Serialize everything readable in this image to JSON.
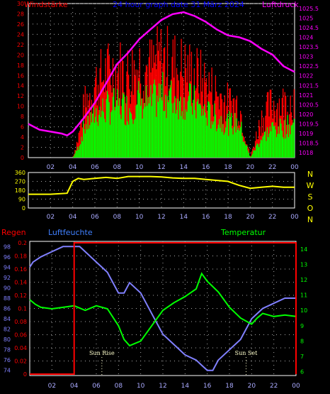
{
  "chart_data": [
    {
      "type": "bar+line",
      "title": "24 hour graph date  31 März 2024",
      "left_label": "Windstärke",
      "right_label": "Luftdruck",
      "y_left_ticks": [
        "0",
        "2",
        "4",
        "6",
        "8",
        "10",
        "12",
        "14",
        "16",
        "18",
        "20",
        "22",
        "24",
        "26",
        "28",
        "30"
      ],
      "y_right_ticks": [
        "1018",
        "1018.5",
        "1019",
        "1019.5",
        "1020",
        "1020.5",
        "1021",
        "1021.5",
        "1022",
        "1022.5",
        "1023",
        "1023.5",
        "1024",
        "1024.5",
        "1025",
        "1025.5"
      ],
      "x_ticks": [
        "02",
        "04",
        "06",
        "08",
        "10",
        "12",
        "14",
        "16",
        "18",
        "20",
        "22",
        "00"
      ],
      "ylim_left": [
        0,
        30
      ],
      "ylim_right": [
        1017.75,
        1025.75
      ],
      "colors": {
        "gust": "#ff0000",
        "speed": "#00ff00",
        "pressure": "#ff00ff",
        "title": "#0000ff"
      },
      "pressure": {
        "x": [
          0,
          1,
          2,
          3,
          3.5,
          4,
          5,
          6,
          7,
          8,
          9,
          10,
          11,
          12,
          13,
          14,
          15,
          16,
          17,
          18,
          19,
          20,
          21,
          22,
          23,
          24
        ],
        "values": [
          1019.5,
          1019.2,
          1019.1,
          1019.0,
          1018.9,
          1019.1,
          1019.8,
          1020.6,
          1021.6,
          1022.6,
          1023.2,
          1023.9,
          1024.4,
          1024.9,
          1025.2,
          1025.3,
          1025.1,
          1024.8,
          1024.4,
          1024.1,
          1024.0,
          1023.8,
          1023.4,
          1023.1,
          1022.5,
          1022.2
        ]
      },
      "wind_speed_profile": {
        "x": [
          0,
          4,
          4.5,
          5,
          6,
          7,
          8,
          9,
          10,
          11,
          12,
          13,
          14,
          15,
          16,
          17,
          18,
          19,
          20,
          21,
          22,
          23,
          24
        ],
        "values": [
          0,
          0,
          2,
          6,
          9,
          10,
          11,
          10,
          12,
          11,
          13,
          12,
          12,
          11,
          9,
          8,
          7,
          7,
          0,
          4,
          6,
          6,
          7
        ]
      },
      "wind_gust_profile": {
        "x": [
          0,
          4,
          4.5,
          5,
          6,
          7,
          8,
          9,
          10,
          11,
          12,
          13,
          14,
          15,
          16,
          17,
          18,
          19,
          20,
          21,
          22,
          23,
          24
        ],
        "values": [
          0,
          0,
          4,
          10,
          15,
          17,
          18,
          17,
          19,
          18,
          20,
          19,
          18,
          17,
          15,
          13,
          11,
          11,
          0,
          8,
          11,
          11,
          12
        ]
      }
    },
    {
      "type": "line",
      "y_ticks": [
        "0",
        "90",
        "180",
        "270",
        "360"
      ],
      "right_labels": [
        "N",
        "W",
        "S",
        "O",
        "N"
      ],
      "x_ticks": [
        "02",
        "04",
        "06",
        "08",
        "10",
        "12",
        "14",
        "16",
        "18",
        "20",
        "22",
        "00"
      ],
      "ylim": [
        0,
        360
      ],
      "color": "#ffff00",
      "wind_direction": {
        "x": [
          0,
          2,
          3.5,
          4,
          4.5,
          5,
          6,
          7,
          8,
          9,
          10,
          11,
          12,
          13,
          14,
          15,
          16,
          17,
          18,
          18.5,
          19,
          20,
          21,
          22,
          23,
          24
        ],
        "values": [
          140,
          140,
          150,
          270,
          300,
          290,
          300,
          310,
          300,
          320,
          320,
          320,
          315,
          305,
          300,
          300,
          290,
          280,
          270,
          250,
          230,
          200,
          210,
          220,
          210,
          210
        ]
      }
    },
    {
      "type": "line",
      "labels": {
        "rain": "Regen",
        "humidity": "Luftfeuchte",
        "temperature": "Temperatur"
      },
      "y_humidity_ticks": [
        "74",
        "76",
        "78",
        "80",
        "82",
        "84",
        "86",
        "88",
        "90",
        "92",
        "94",
        "96",
        "98"
      ],
      "y_rain_ticks": [
        "0",
        "0.02",
        "0.04",
        "0.06",
        "0.08",
        "0.1",
        "0.12",
        "0.14",
        "0.16",
        "0.18",
        "0.2"
      ],
      "y_temp_ticks": [
        "6",
        "7",
        "8",
        "9",
        "10",
        "11",
        "12",
        "13",
        "14"
      ],
      "x_ticks": [
        "02",
        "04",
        "06",
        "08",
        "10",
        "12",
        "14",
        "16",
        "18",
        "20",
        "22",
        "00"
      ],
      "annotations": [
        "Sun Rise",
        "Sun Set"
      ],
      "annotation_hours": [
        6.5,
        19.5
      ],
      "humidity_lim": [
        73,
        99
      ],
      "rain_lim": [
        0,
        0.2
      ],
      "temp_lim": [
        5.75,
        14.5
      ],
      "colors": {
        "rain": "#ff0000",
        "humidity": "#8080ff",
        "temperature": "#00ff00",
        "rain_label": "#ff0000",
        "humidity_label": "#4080ff",
        "temperature_label": "#00ff00"
      },
      "rain": {
        "x": [
          0,
          4,
          4,
          24,
          24
        ],
        "values": [
          0,
          0,
          0.2,
          0.2,
          0
        ]
      },
      "humidity": {
        "x": [
          0,
          0.3,
          1,
          2,
          3,
          4,
          4.5,
          5,
          6,
          7,
          8,
          8.5,
          9,
          10,
          11,
          12,
          13,
          14,
          15,
          15.5,
          16,
          16.5,
          17,
          18,
          19,
          20,
          21,
          22,
          23,
          24
        ],
        "values": [
          94,
          95,
          96,
          97,
          98,
          98,
          98,
          97,
          95,
          93,
          89,
          89,
          91,
          89,
          85,
          81,
          79,
          77,
          76,
          75,
          74,
          74,
          76,
          78,
          80,
          84,
          86,
          87,
          88,
          88
        ]
      },
      "temperature": {
        "x": [
          0,
          0.5,
          1,
          2,
          3,
          4,
          5,
          6,
          7,
          8,
          8.5,
          9,
          10,
          11,
          12,
          13,
          14,
          15,
          15.5,
          16,
          17,
          18,
          19,
          20,
          20.5,
          21,
          22,
          23,
          24
        ],
        "values": [
          10.7,
          10.4,
          10.2,
          10.1,
          10.2,
          10.3,
          10.0,
          10.3,
          10.1,
          9.0,
          8.1,
          7.7,
          8.0,
          9.0,
          10.0,
          10.5,
          10.9,
          11.4,
          12.4,
          11.9,
          11.2,
          10.2,
          9.5,
          9.1,
          9.5,
          9.8,
          9.6,
          9.7,
          9.6
        ]
      }
    }
  ]
}
